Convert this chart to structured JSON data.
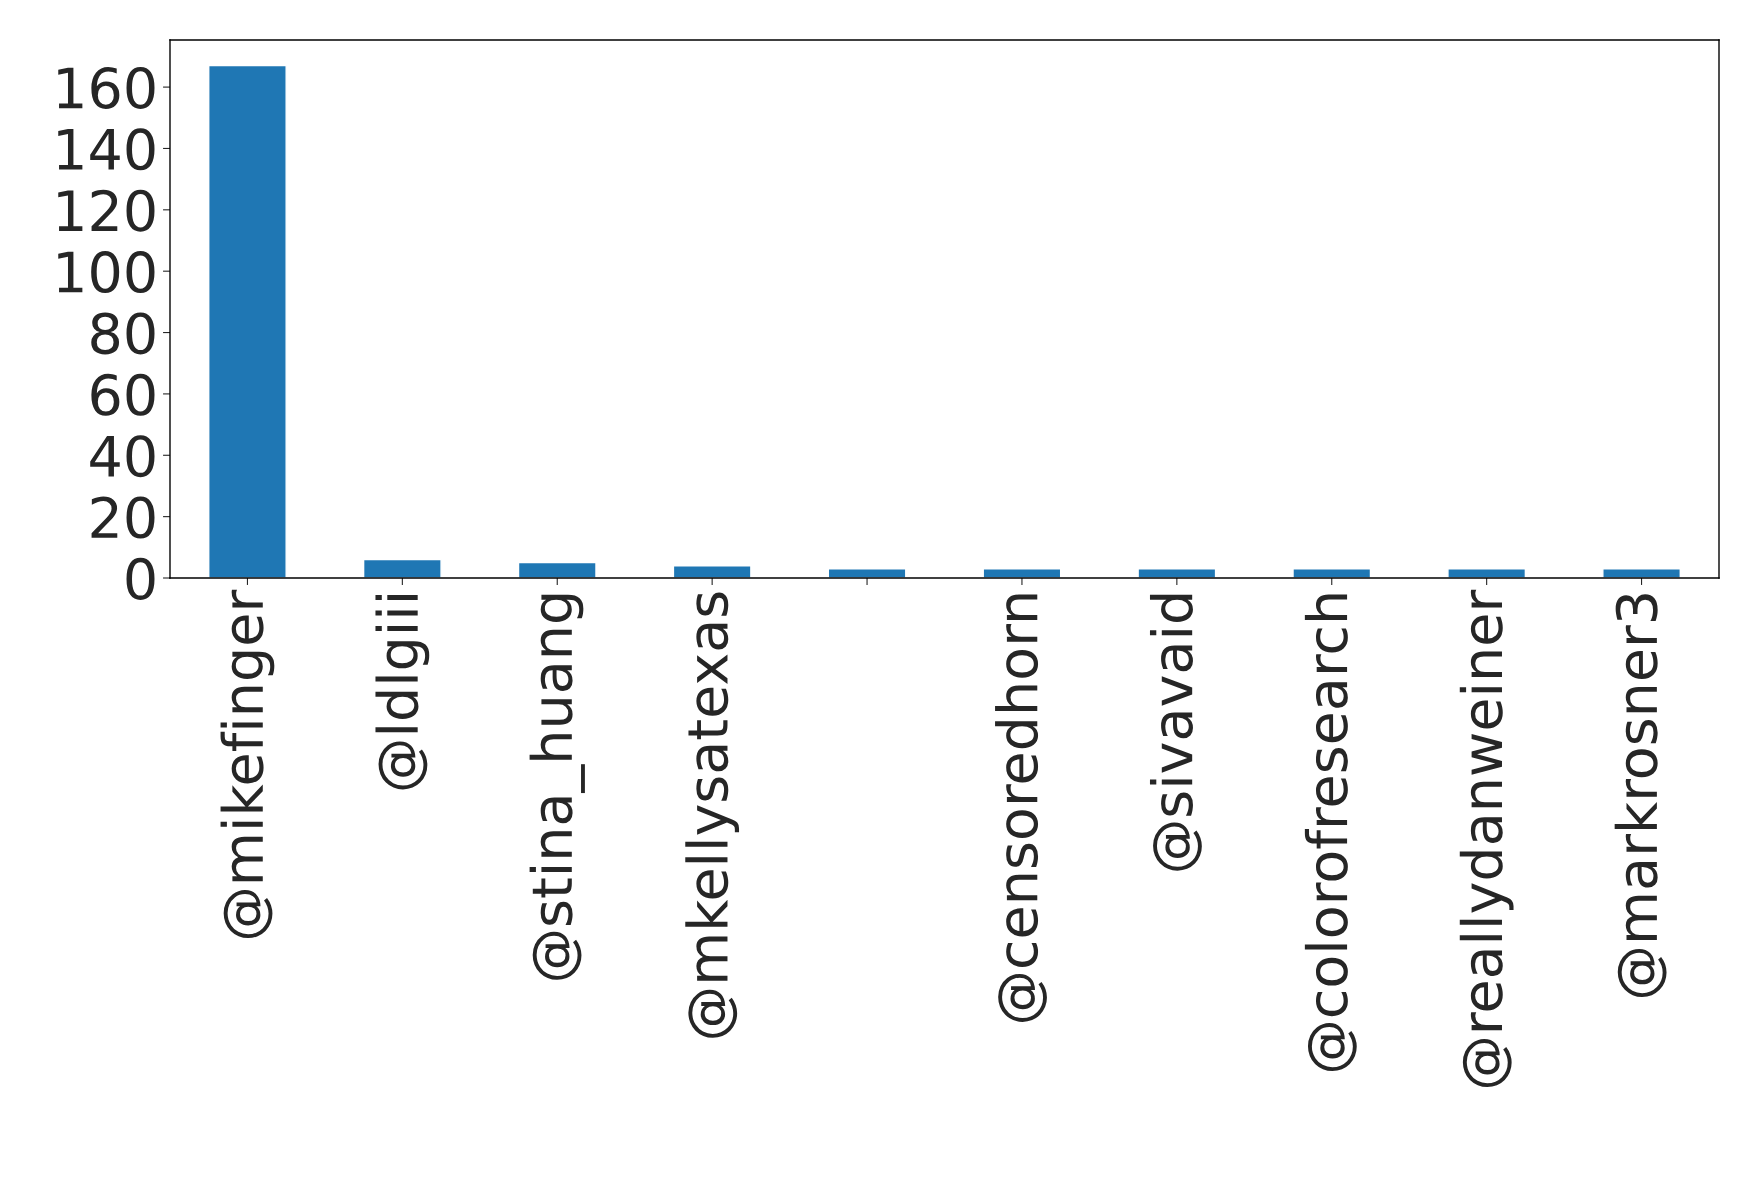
{
  "chart_data": {
    "type": "bar",
    "categories": [
      "@mikefinger",
      "@ldlgiii",
      "@stina_huang",
      "@mkellysatexas",
      null,
      "@censoredhorn",
      "@sivavaid",
      "@colorofresearch",
      "@reallydanweiner",
      "@markrosner3"
    ],
    "values": [
      167,
      6,
      5,
      4,
      3,
      3,
      3,
      3,
      3,
      3
    ],
    "color": "#1f77b4",
    "ylim": [
      0,
      175.35
    ],
    "yticks": [
      0,
      20,
      40,
      60,
      80,
      100,
      120,
      140,
      160
    ],
    "grid": false,
    "legend": false
  }
}
